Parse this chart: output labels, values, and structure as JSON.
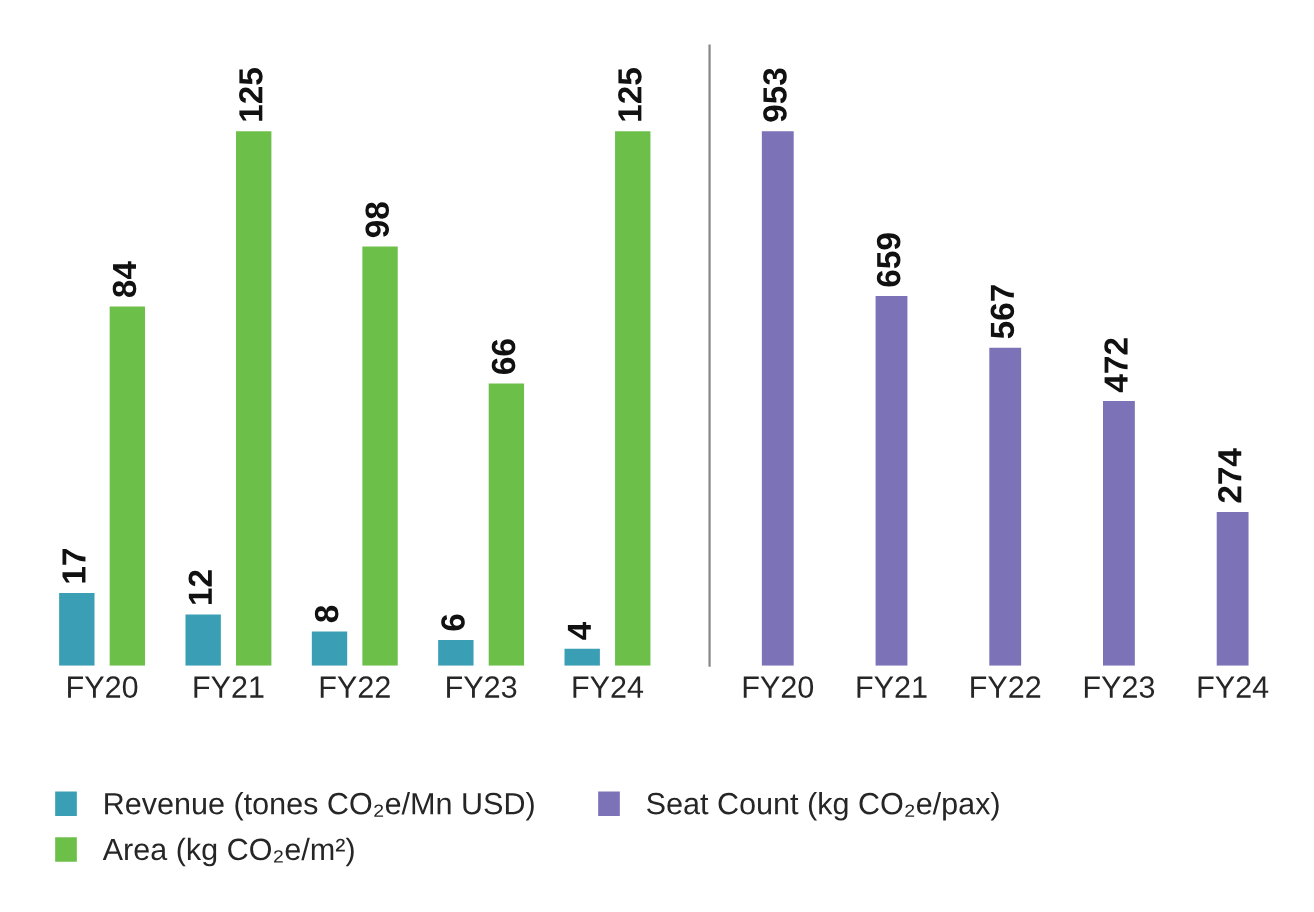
{
  "chart_data": [
    {
      "type": "bar",
      "categories": [
        "FY20",
        "FY21",
        "FY22",
        "FY23",
        "FY24"
      ],
      "series": [
        {
          "name": "Revenue (tones CO₂e/Mn USD)",
          "color": "#3a9fb5",
          "values": [
            17,
            12,
            8,
            6,
            4
          ]
        },
        {
          "name": "Area (kg CO₂e/m²)",
          "color": "#6cc04a",
          "values": [
            84,
            125,
            98,
            66,
            125
          ]
        }
      ],
      "data_labels": true,
      "tick_labels": "x",
      "grid": false,
      "legend": "bottom"
    },
    {
      "type": "bar",
      "categories": [
        "FY20",
        "FY21",
        "FY22",
        "FY23",
        "FY24"
      ],
      "series": [
        {
          "name": "Seat Count (kg CO₂e/pax)",
          "color": "#7b72b8",
          "values": [
            953,
            659,
            567,
            472,
            274
          ]
        }
      ],
      "data_labels": true,
      "tick_labels": "x",
      "grid": false,
      "legend": "bottom"
    }
  ]
}
